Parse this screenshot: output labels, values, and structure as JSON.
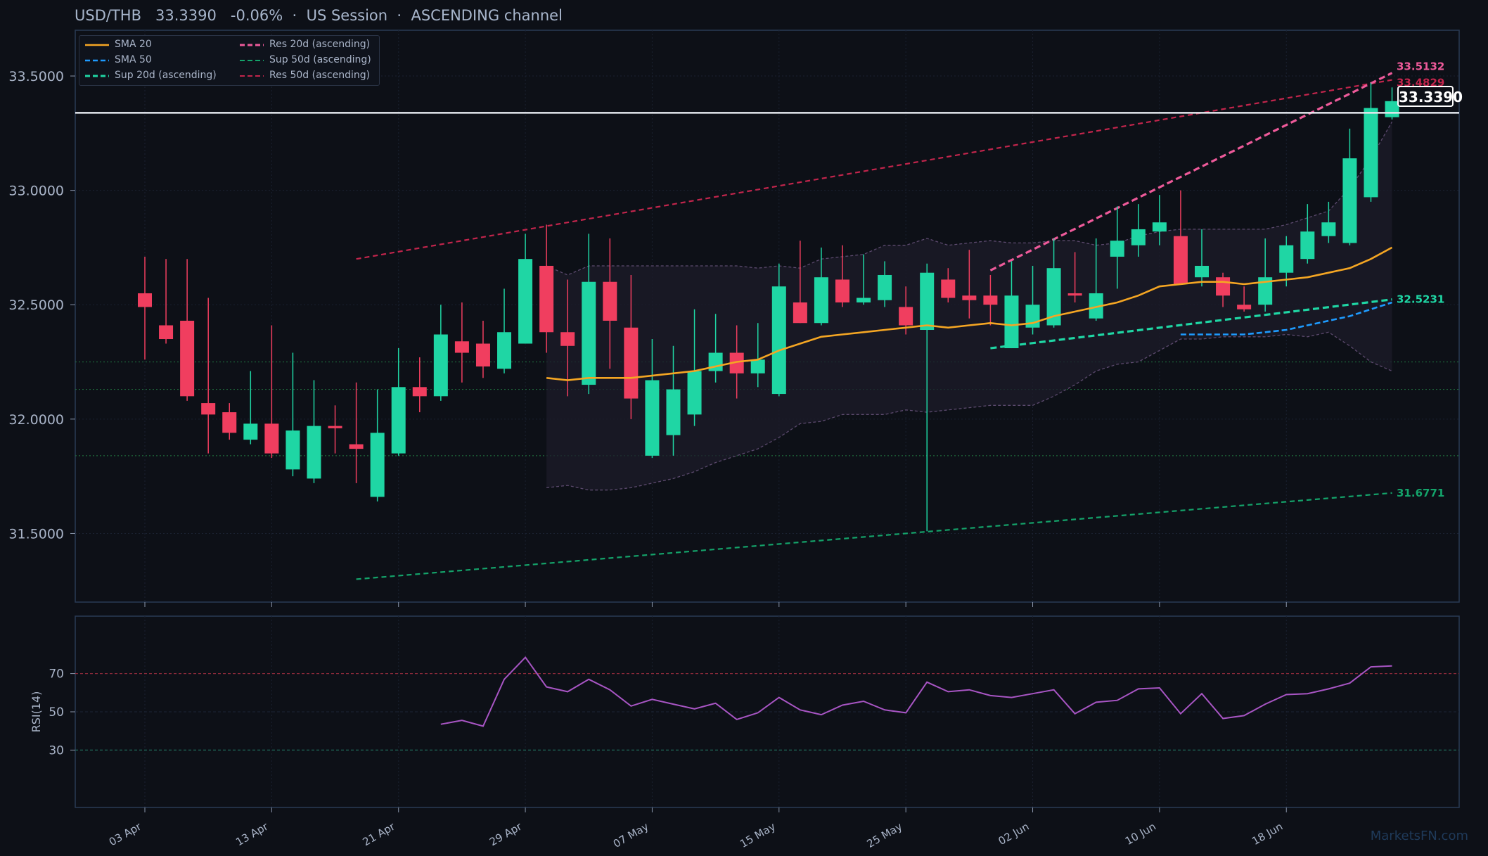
{
  "title": {
    "pair": "USD/THB",
    "price": "33.3390",
    "change": "-0.06%",
    "session": "US Session",
    "channel": "ASCENDING channel"
  },
  "watermark": "MarketsFN.com",
  "price_tag": "33.3390",
  "colors": {
    "up": "#1fd6a4",
    "down": "#f03e5f",
    "sma20": "#f5a623",
    "sma50": "#1e9bff",
    "sup20": "#1fd6a4",
    "sup50": "#14a36a",
    "res20": "#ee5a9a",
    "res50": "#c2254c",
    "rsi": "#a855c4",
    "background": "#0d1017",
    "panel_border": "#2a3a55"
  },
  "legend": [
    {
      "label": "SMA 20",
      "color": "#f5a623",
      "dash": "solid"
    },
    {
      "label": "SMA 50",
      "color": "#1e9bff",
      "dash": "dashed"
    },
    {
      "label": "Sup 20d (ascending)",
      "color": "#1fd6a4",
      "dash": "dashed"
    },
    {
      "label": "Res 20d (ascending)",
      "color": "#ee5a9a",
      "dash": "dashed"
    },
    {
      "label": "Sup 50d (ascending)",
      "color": "#14a36a",
      "dash": "dashed"
    },
    {
      "label": "Res 50d (ascending)",
      "color": "#c2254c",
      "dash": "dashed"
    }
  ],
  "chart_data": {
    "type": "candlestick",
    "x_tick_labels": [
      "03 Apr",
      "13 Apr",
      "21 Apr",
      "29 Apr",
      "07 May",
      "15 May",
      "25 May",
      "02 Jun",
      "10 Jun",
      "18 Jun"
    ],
    "x_tick_index": [
      0,
      6,
      12,
      18,
      24,
      30,
      36,
      42,
      48,
      54
    ],
    "y_ticks": [
      31.5,
      32.0,
      32.5,
      33.0,
      33.5
    ],
    "y_tick_labels": [
      "31.5000",
      "32.0000",
      "32.5000",
      "33.0000",
      "33.5000"
    ],
    "ylim": [
      31.2,
      33.7
    ],
    "grid": true,
    "legend_position": "top-left",
    "current_price": 33.339,
    "ohlc": [
      [
        32.55,
        32.71,
        32.26,
        32.49
      ],
      [
        32.41,
        32.7,
        32.33,
        32.35
      ],
      [
        32.43,
        32.7,
        32.08,
        32.1
      ],
      [
        32.07,
        32.53,
        31.85,
        32.02
      ],
      [
        32.03,
        32.07,
        31.91,
        31.94
      ],
      [
        31.91,
        32.21,
        31.89,
        31.98
      ],
      [
        31.98,
        32.41,
        31.83,
        31.85
      ],
      [
        31.78,
        32.29,
        31.75,
        31.95
      ],
      [
        31.74,
        32.17,
        31.72,
        31.97
      ],
      [
        31.97,
        32.06,
        31.85,
        31.96
      ],
      [
        31.89,
        32.16,
        31.72,
        31.87
      ],
      [
        31.66,
        32.13,
        31.64,
        31.94
      ],
      [
        31.85,
        32.31,
        31.84,
        32.14
      ],
      [
        32.14,
        32.27,
        32.03,
        32.1
      ],
      [
        32.1,
        32.5,
        32.08,
        32.37
      ],
      [
        32.34,
        32.51,
        32.16,
        32.29
      ],
      [
        32.33,
        32.43,
        32.18,
        32.23
      ],
      [
        32.22,
        32.57,
        32.2,
        32.38
      ],
      [
        32.33,
        32.81,
        32.33,
        32.7
      ],
      [
        32.67,
        32.85,
        32.29,
        32.38
      ],
      [
        32.38,
        32.61,
        32.1,
        32.32
      ],
      [
        32.15,
        32.81,
        32.11,
        32.6
      ],
      [
        32.6,
        32.79,
        32.22,
        32.43
      ],
      [
        32.4,
        32.63,
        32.0,
        32.09
      ],
      [
        31.84,
        32.35,
        31.83,
        32.17
      ],
      [
        31.93,
        32.32,
        31.84,
        32.13
      ],
      [
        32.02,
        32.48,
        31.97,
        32.21
      ],
      [
        32.21,
        32.46,
        32.16,
        32.29
      ],
      [
        32.29,
        32.41,
        32.09,
        32.2
      ],
      [
        32.2,
        32.42,
        32.14,
        32.26
      ],
      [
        32.11,
        32.68,
        32.1,
        32.58
      ],
      [
        32.51,
        32.78,
        32.42,
        32.42
      ],
      [
        32.42,
        32.75,
        32.41,
        32.62
      ],
      [
        32.61,
        32.76,
        32.49,
        32.51
      ],
      [
        32.51,
        32.72,
        32.5,
        32.53
      ],
      [
        32.52,
        32.69,
        32.49,
        32.63
      ],
      [
        32.49,
        32.58,
        32.37,
        32.41
      ],
      [
        32.39,
        32.68,
        31.51,
        32.64
      ],
      [
        32.61,
        32.66,
        32.51,
        32.53
      ],
      [
        32.54,
        32.74,
        32.44,
        32.52
      ],
      [
        32.54,
        32.63,
        32.41,
        32.5
      ],
      [
        32.31,
        32.69,
        32.31,
        32.54
      ],
      [
        32.4,
        32.67,
        32.37,
        32.5
      ],
      [
        32.41,
        32.79,
        32.4,
        32.66
      ],
      [
        32.55,
        32.73,
        32.51,
        32.54
      ],
      [
        32.44,
        32.79,
        32.43,
        32.55
      ],
      [
        32.71,
        32.93,
        32.57,
        32.78
      ],
      [
        32.76,
        32.94,
        32.71,
        32.83
      ],
      [
        32.82,
        32.98,
        32.76,
        32.86
      ],
      [
        32.8,
        33.0,
        32.6,
        32.59
      ],
      [
        32.62,
        32.83,
        32.58,
        32.67
      ],
      [
        32.62,
        32.64,
        32.49,
        32.54
      ],
      [
        32.5,
        32.58,
        32.47,
        32.48
      ],
      [
        32.5,
        32.79,
        32.47,
        32.62
      ],
      [
        32.64,
        32.8,
        32.58,
        32.76
      ],
      [
        32.7,
        32.94,
        32.68,
        32.82
      ],
      [
        32.8,
        32.95,
        32.77,
        32.86
      ],
      [
        32.77,
        33.27,
        32.76,
        33.14
      ],
      [
        32.97,
        33.47,
        32.95,
        33.36
      ],
      [
        33.32,
        33.45,
        33.31,
        33.39
      ]
    ],
    "sma20": [
      [
        19,
        32.18
      ],
      [
        20,
        32.17
      ],
      [
        21,
        32.18
      ],
      [
        22,
        32.18
      ],
      [
        23,
        32.18
      ],
      [
        24,
        32.19
      ],
      [
        25,
        32.2
      ],
      [
        26,
        32.21
      ],
      [
        27,
        32.23
      ],
      [
        28,
        32.25
      ],
      [
        29,
        32.26
      ],
      [
        30,
        32.3
      ],
      [
        31,
        32.33
      ],
      [
        32,
        32.36
      ],
      [
        33,
        32.37
      ],
      [
        34,
        32.38
      ],
      [
        35,
        32.39
      ],
      [
        36,
        32.4
      ],
      [
        37,
        32.41
      ],
      [
        38,
        32.4
      ],
      [
        39,
        32.41
      ],
      [
        40,
        32.42
      ],
      [
        41,
        32.41
      ],
      [
        42,
        32.42
      ],
      [
        43,
        32.45
      ],
      [
        44,
        32.47
      ],
      [
        45,
        32.49
      ],
      [
        46,
        32.51
      ],
      [
        47,
        32.54
      ],
      [
        48,
        32.58
      ],
      [
        49,
        32.59
      ],
      [
        50,
        32.6
      ],
      [
        51,
        32.6
      ],
      [
        52,
        32.59
      ],
      [
        53,
        32.6
      ],
      [
        54,
        32.61
      ],
      [
        55,
        32.62
      ],
      [
        56,
        32.64
      ],
      [
        57,
        32.66
      ],
      [
        58,
        32.7
      ],
      [
        59,
        32.75
      ]
    ],
    "sma50": [
      [
        49,
        32.37
      ],
      [
        50,
        32.37
      ],
      [
        51,
        32.37
      ],
      [
        52,
        32.37
      ],
      [
        53,
        32.38
      ],
      [
        54,
        32.39
      ],
      [
        55,
        32.41
      ],
      [
        56,
        32.43
      ],
      [
        57,
        32.45
      ],
      [
        58,
        32.48
      ],
      [
        59,
        32.51
      ]
    ],
    "bollinger_upper": [
      [
        19,
        32.67
      ],
      [
        20,
        32.63
      ],
      [
        21,
        32.67
      ],
      [
        22,
        32.67
      ],
      [
        23,
        32.67
      ],
      [
        24,
        32.67
      ],
      [
        25,
        32.67
      ],
      [
        26,
        32.67
      ],
      [
        27,
        32.67
      ],
      [
        28,
        32.67
      ],
      [
        29,
        32.66
      ],
      [
        30,
        32.67
      ],
      [
        31,
        32.66
      ],
      [
        32,
        32.7
      ],
      [
        33,
        32.71
      ],
      [
        34,
        32.72
      ],
      [
        35,
        32.76
      ],
      [
        36,
        32.76
      ],
      [
        37,
        32.79
      ],
      [
        38,
        32.76
      ],
      [
        39,
        32.77
      ],
      [
        40,
        32.78
      ],
      [
        41,
        32.77
      ],
      [
        42,
        32.77
      ],
      [
        43,
        32.78
      ],
      [
        44,
        32.78
      ],
      [
        45,
        32.76
      ],
      [
        46,
        32.77
      ],
      [
        47,
        32.8
      ],
      [
        48,
        32.82
      ],
      [
        49,
        32.83
      ],
      [
        50,
        32.83
      ],
      [
        51,
        32.83
      ],
      [
        52,
        32.83
      ],
      [
        53,
        32.83
      ],
      [
        54,
        32.85
      ],
      [
        55,
        32.88
      ],
      [
        56,
        32.91
      ],
      [
        57,
        33.01
      ],
      [
        58,
        33.14
      ],
      [
        59,
        33.3
      ]
    ],
    "bollinger_lower": [
      [
        19,
        31.7
      ],
      [
        20,
        31.71
      ],
      [
        21,
        31.69
      ],
      [
        22,
        31.69
      ],
      [
        23,
        31.7
      ],
      [
        24,
        31.72
      ],
      [
        25,
        31.74
      ],
      [
        26,
        31.77
      ],
      [
        27,
        31.81
      ],
      [
        28,
        31.84
      ],
      [
        29,
        31.87
      ],
      [
        30,
        31.92
      ],
      [
        31,
        31.98
      ],
      [
        32,
        31.99
      ],
      [
        33,
        32.02
      ],
      [
        34,
        32.02
      ],
      [
        35,
        32.02
      ],
      [
        36,
        32.04
      ],
      [
        37,
        32.03
      ],
      [
        38,
        32.04
      ],
      [
        39,
        32.05
      ],
      [
        40,
        32.06
      ],
      [
        41,
        32.06
      ],
      [
        42,
        32.06
      ],
      [
        43,
        32.1
      ],
      [
        44,
        32.15
      ],
      [
        45,
        32.21
      ],
      [
        46,
        32.24
      ],
      [
        47,
        32.25
      ],
      [
        48,
        32.3
      ],
      [
        49,
        32.35
      ],
      [
        50,
        32.35
      ],
      [
        51,
        32.36
      ],
      [
        52,
        32.36
      ],
      [
        53,
        32.36
      ],
      [
        54,
        32.37
      ],
      [
        55,
        32.36
      ],
      [
        56,
        32.38
      ],
      [
        57,
        32.32
      ],
      [
        58,
        32.25
      ],
      [
        59,
        32.21
      ]
    ],
    "sup20": {
      "from": [
        40,
        32.31
      ],
      "to": [
        59,
        32.5231
      ],
      "label": "32.5231"
    },
    "res20": {
      "from": [
        40,
        32.65
      ],
      "to": [
        59,
        33.5132
      ],
      "label": "33.5132"
    },
    "sup50": {
      "from": [
        10,
        31.3
      ],
      "to": [
        59,
        31.6771
      ],
      "label": "31.6771"
    },
    "res50": {
      "from": [
        10,
        32.7
      ],
      "to": [
        59,
        33.4829
      ],
      "label": "33.4829"
    },
    "horizontal_levels": [
      32.25,
      32.13,
      31.84
    ],
    "rsi": {
      "label": "RSI(14)",
      "y_ticks": [
        30,
        50,
        70
      ],
      "ylim": [
        0,
        100
      ],
      "overbought": 70,
      "oversold": 30,
      "values": [
        [
          14,
          43.5
        ],
        [
          15,
          45.5
        ],
        [
          16,
          42.5
        ],
        [
          17,
          67
        ],
        [
          18,
          78.5
        ],
        [
          19,
          63
        ],
        [
          20,
          60.5
        ],
        [
          21,
          67
        ],
        [
          22,
          61.5
        ],
        [
          23,
          53
        ],
        [
          24,
          56.5
        ],
        [
          25,
          54
        ],
        [
          26,
          51.5
        ],
        [
          27,
          54.5
        ],
        [
          28,
          46
        ],
        [
          29,
          49.5
        ],
        [
          30,
          57.5
        ],
        [
          31,
          51
        ],
        [
          32,
          48.5
        ],
        [
          33,
          53.5
        ],
        [
          34,
          55.5
        ],
        [
          35,
          51
        ],
        [
          36,
          49.5
        ],
        [
          37,
          65.5
        ],
        [
          38,
          60.5
        ],
        [
          39,
          61.5
        ],
        [
          40,
          58.5
        ],
        [
          41,
          57.5
        ],
        [
          42,
          59.5
        ],
        [
          43,
          61.5
        ],
        [
          44,
          49
        ],
        [
          45,
          55
        ],
        [
          46,
          56
        ],
        [
          47,
          62
        ],
        [
          48,
          62.5
        ],
        [
          49,
          49
        ],
        [
          50,
          59.5
        ],
        [
          51,
          46.5
        ],
        [
          52,
          48
        ],
        [
          53,
          54
        ],
        [
          54,
          59
        ],
        [
          55,
          59.5
        ],
        [
          56,
          62
        ],
        [
          57,
          65
        ],
        [
          58,
          73.5
        ],
        [
          59,
          74
        ]
      ]
    }
  }
}
